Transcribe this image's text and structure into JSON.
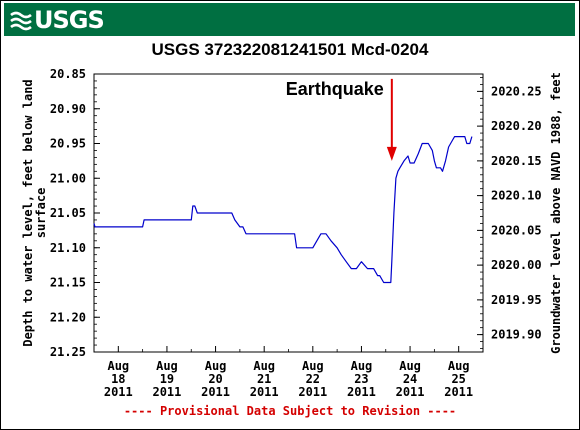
{
  "header": {
    "logo_text": "USGS",
    "logo_icon": "usgs-wave-icon",
    "brand_color": "#006f41"
  },
  "chart_data": {
    "type": "line",
    "title": "USGS 372322081241501  Mcd-0204",
    "ylabel_left": "Depth to water level, feet below land surface",
    "ylabel_right": "Groundwater level above NAVD 1988, feet",
    "ylim_left": [
      21.25,
      20.85
    ],
    "ylim_right": [
      2019.875,
      2020.275
    ],
    "y_ticks_left": [
      "20.85",
      "20.90",
      "20.95",
      "21.00",
      "21.05",
      "21.10",
      "21.15",
      "21.20",
      "21.25"
    ],
    "y_ticks_right": [
      "2020.25",
      "2020.20",
      "2020.15",
      "2020.10",
      "2020.05",
      "2020.00",
      "2019.95",
      "2019.90"
    ],
    "x_ticks": [
      {
        "month": "Aug",
        "day": "18",
        "year": "2011"
      },
      {
        "month": "Aug",
        "day": "19",
        "year": "2011"
      },
      {
        "month": "Aug",
        "day": "20",
        "year": "2011"
      },
      {
        "month": "Aug",
        "day": "21",
        "year": "2011"
      },
      {
        "month": "Aug",
        "day": "22",
        "year": "2011"
      },
      {
        "month": "Aug",
        "day": "23",
        "year": "2011"
      },
      {
        "month": "Aug",
        "day": "24",
        "year": "2011"
      },
      {
        "month": "Aug",
        "day": "25",
        "year": "2011"
      }
    ],
    "xlim": [
      "2011-08-17 12:00",
      "2011-08-25 12:00"
    ],
    "line_color": "#0000cc",
    "series": [
      {
        "values": [
          {
            "x": "2011-08-17 12:00",
            "y": 21.065
          },
          {
            "x": "2011-08-17 12:30",
            "y": 21.07
          },
          {
            "x": "2011-08-18 12:00",
            "y": 21.07
          },
          {
            "x": "2011-08-18 12:45",
            "y": 21.06
          },
          {
            "x": "2011-08-19 12:00",
            "y": 21.06
          },
          {
            "x": "2011-08-19 12:45",
            "y": 21.04
          },
          {
            "x": "2011-08-19 13:45",
            "y": 21.04
          },
          {
            "x": "2011-08-19 15:00",
            "y": 21.05
          },
          {
            "x": "2011-08-20 08:00",
            "y": 21.05
          },
          {
            "x": "2011-08-20 09:30",
            "y": 21.06
          },
          {
            "x": "2011-08-20 12:00",
            "y": 21.07
          },
          {
            "x": "2011-08-20 13:30",
            "y": 21.07
          },
          {
            "x": "2011-08-20 15:00",
            "y": 21.08
          },
          {
            "x": "2011-08-21 12:00",
            "y": 21.08
          },
          {
            "x": "2011-08-21 15:00",
            "y": 21.08
          },
          {
            "x": "2011-08-21 16:00",
            "y": 21.1
          },
          {
            "x": "2011-08-22 00:00",
            "y": 21.1
          },
          {
            "x": "2011-08-22 04:00",
            "y": 21.08
          },
          {
            "x": "2011-08-22 06:30",
            "y": 21.08
          },
          {
            "x": "2011-08-22 09:00",
            "y": 21.09
          },
          {
            "x": "2011-08-22 12:00",
            "y": 21.1
          },
          {
            "x": "2011-08-22 14:00",
            "y": 21.11
          },
          {
            "x": "2011-08-22 16:30",
            "y": 21.12
          },
          {
            "x": "2011-08-22 19:00",
            "y": 21.13
          },
          {
            "x": "2011-08-22 21:30",
            "y": 21.13
          },
          {
            "x": "2011-08-23 00:00",
            "y": 21.12
          },
          {
            "x": "2011-08-23 03:00",
            "y": 21.13
          },
          {
            "x": "2011-08-23 06:00",
            "y": 21.13
          },
          {
            "x": "2011-08-23 08:00",
            "y": 21.14
          },
          {
            "x": "2011-08-23 09:00",
            "y": 21.14
          },
          {
            "x": "2011-08-23 11:00",
            "y": 21.15
          },
          {
            "x": "2011-08-23 14:30",
            "y": 21.15
          },
          {
            "x": "2011-08-23 15:00",
            "y": 21.12
          },
          {
            "x": "2011-08-23 16:00",
            "y": 21.05
          },
          {
            "x": "2011-08-23 17:00",
            "y": 21.0
          },
          {
            "x": "2011-08-23 18:00",
            "y": 20.99
          },
          {
            "x": "2011-08-23 19:00",
            "y": 20.985
          },
          {
            "x": "2011-08-23 21:00",
            "y": 20.975
          },
          {
            "x": "2011-08-23 23:00",
            "y": 20.968
          },
          {
            "x": "2011-08-24 00:00",
            "y": 20.978
          },
          {
            "x": "2011-08-24 02:00",
            "y": 20.978
          },
          {
            "x": "2011-08-24 04:00",
            "y": 20.965
          },
          {
            "x": "2011-08-24 06:00",
            "y": 20.95
          },
          {
            "x": "2011-08-24 09:00",
            "y": 20.95
          },
          {
            "x": "2011-08-24 11:00",
            "y": 20.96
          },
          {
            "x": "2011-08-24 12:00",
            "y": 20.975
          },
          {
            "x": "2011-08-24 13:00",
            "y": 20.985
          },
          {
            "x": "2011-08-24 15:00",
            "y": 20.985
          },
          {
            "x": "2011-08-24 16:00",
            "y": 20.99
          },
          {
            "x": "2011-08-24 17:30",
            "y": 20.975
          },
          {
            "x": "2011-08-24 19:00",
            "y": 20.955
          },
          {
            "x": "2011-08-24 21:00",
            "y": 20.945
          },
          {
            "x": "2011-08-24 22:00",
            "y": 20.94
          },
          {
            "x": "2011-08-25 03:00",
            "y": 20.94
          },
          {
            "x": "2011-08-25 04:00",
            "y": 20.95
          },
          {
            "x": "2011-08-25 05:30",
            "y": 20.95
          },
          {
            "x": "2011-08-25 06:30",
            "y": 20.94
          }
        ]
      }
    ],
    "annotation": {
      "text": "Earthquake",
      "arrow_color": "#e00000",
      "arrow_x": "2011-08-23 15:00",
      "arrow_top_y": 20.857,
      "arrow_tip_y": 20.975
    },
    "grid": false
  },
  "footer": {
    "provisional_note": "---- Provisional Data Subject to Revision ----",
    "provisional_color": "#d40000"
  }
}
